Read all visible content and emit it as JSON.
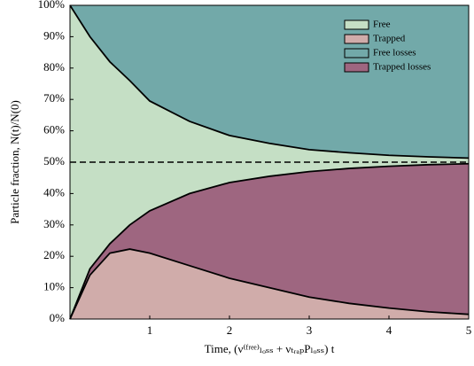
{
  "chart_data": {
    "type": "stacked_area",
    "x": [
      0,
      0.25,
      0.5,
      0.75,
      1,
      1.5,
      2,
      2.5,
      3,
      3.5,
      4,
      4.5,
      5
    ],
    "series": [
      {
        "name": "Free",
        "color": "#c5dfc5",
        "values": [
          100,
          74,
          58,
          46,
          35,
          23,
          15,
          10.5,
          7,
          5,
          3.5,
          2.5,
          1.8
        ]
      },
      {
        "name": "Trapped",
        "color": "#d0acaa",
        "values": [
          0,
          14,
          21,
          22.3,
          21,
          17,
          13,
          10,
          7,
          5,
          3.5,
          2.3,
          1.5
        ]
      },
      {
        "name": "Free losses",
        "color": "#72a9a9",
        "values": [
          0,
          10,
          18,
          24,
          30.5,
          37,
          41.5,
          44,
          46,
          47,
          47.8,
          48.3,
          48.7
        ]
      },
      {
        "name": "Trapped losses",
        "color": "#9e6680",
        "values": [
          0,
          2,
          3,
          7.7,
          13.5,
          23,
          30.5,
          35.5,
          40,
          43,
          45.2,
          46.9,
          48
        ]
      }
    ],
    "xlabel": "Time, (ν⁽ᶠʳᵉᵉ⁾ₗₒₛₛ + νₜᵣₐₚPₗₒₛₛ) t",
    "ylabel": "Particle fraction, N(t)/N(0)",
    "xlim": [
      0,
      5
    ],
    "xticks": [
      1,
      2,
      3,
      4,
      5
    ],
    "ylim": [
      0,
      100
    ],
    "yticks": [
      {
        "value": 0,
        "label": "0%"
      },
      {
        "value": 10,
        "label": "10%"
      },
      {
        "value": 20,
        "label": "20%"
      },
      {
        "value": 30,
        "label": "30%"
      },
      {
        "value": 40,
        "label": "40%"
      },
      {
        "value": 50,
        "label": "50%"
      },
      {
        "value": 60,
        "label": "60%"
      },
      {
        "value": 70,
        "label": "70%"
      },
      {
        "value": 80,
        "label": "80%"
      },
      {
        "value": 90,
        "label": "90%"
      },
      {
        "value": 100,
        "label": "100%"
      }
    ],
    "hline": 50,
    "legend": "upper right"
  }
}
